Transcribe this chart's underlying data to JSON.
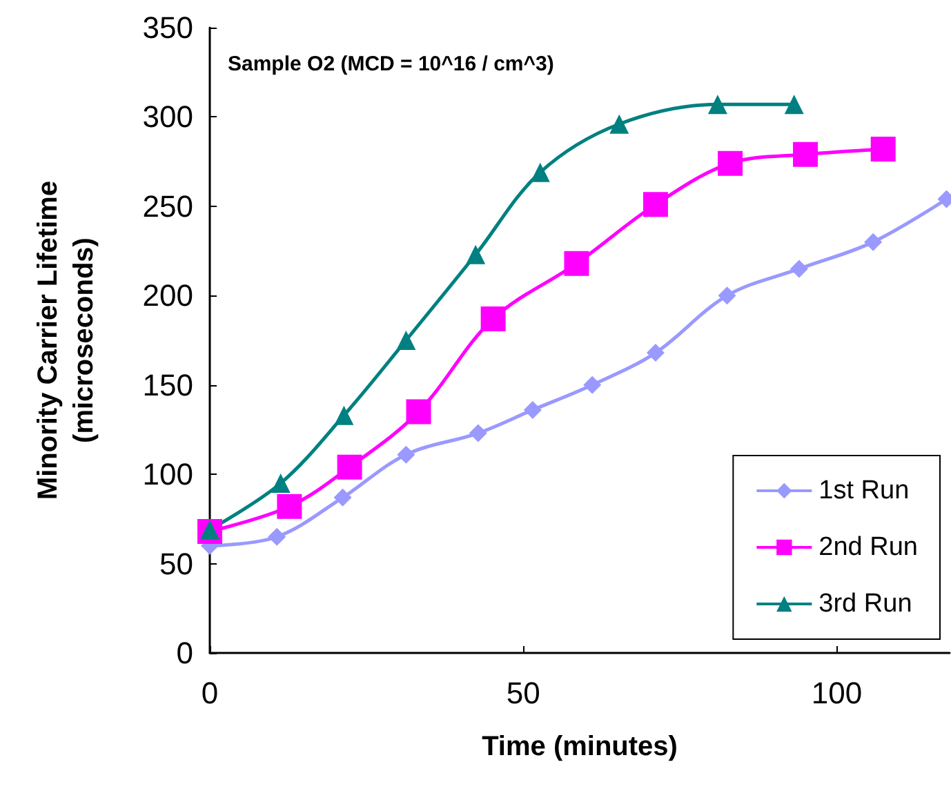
{
  "chart_data": {
    "type": "line",
    "xlabel": "Time (minutes)",
    "ylabel": "Minority Carrier Lifetime\n(microseconds)",
    "annotations": [
      "Sample O2 (MCD = 10^16 / cm^3)"
    ],
    "xlim": [
      0,
      118
    ],
    "xticks": [
      0,
      50,
      100
    ],
    "ylim": [
      0,
      350
    ],
    "yticks": [
      0,
      50,
      100,
      150,
      200,
      250,
      300,
      350
    ],
    "grid": false,
    "legend": "bottom right",
    "series": [
      {
        "name": "1st Run",
        "color": "#9999ff",
        "marker": "diamond",
        "x": [
          0,
          10.7,
          21.2,
          31.3,
          42.8,
          51.5,
          61,
          71.1,
          82.5,
          94,
          105.8,
          117.5
        ],
        "values": [
          60,
          65,
          87,
          111,
          123,
          136,
          150,
          168,
          200,
          215,
          230,
          254
        ]
      },
      {
        "name": "2nd Run",
        "color": "#ff00ff",
        "marker": "square",
        "x": [
          0,
          12.7,
          22.3,
          33.3,
          45.2,
          58.5,
          71.1,
          83,
          95,
          107.4
        ],
        "values": [
          68,
          82,
          104,
          135,
          187,
          218,
          251,
          274,
          279,
          282
        ]
      },
      {
        "name": "3rd Run",
        "color": "#008080",
        "marker": "triangle",
        "x": [
          0,
          11.3,
          21.4,
          31.3,
          42.4,
          52.7,
          65.3,
          81,
          93.2
        ],
        "values": [
          69,
          95,
          133,
          175,
          223,
          269,
          296,
          307,
          307
        ]
      }
    ]
  }
}
